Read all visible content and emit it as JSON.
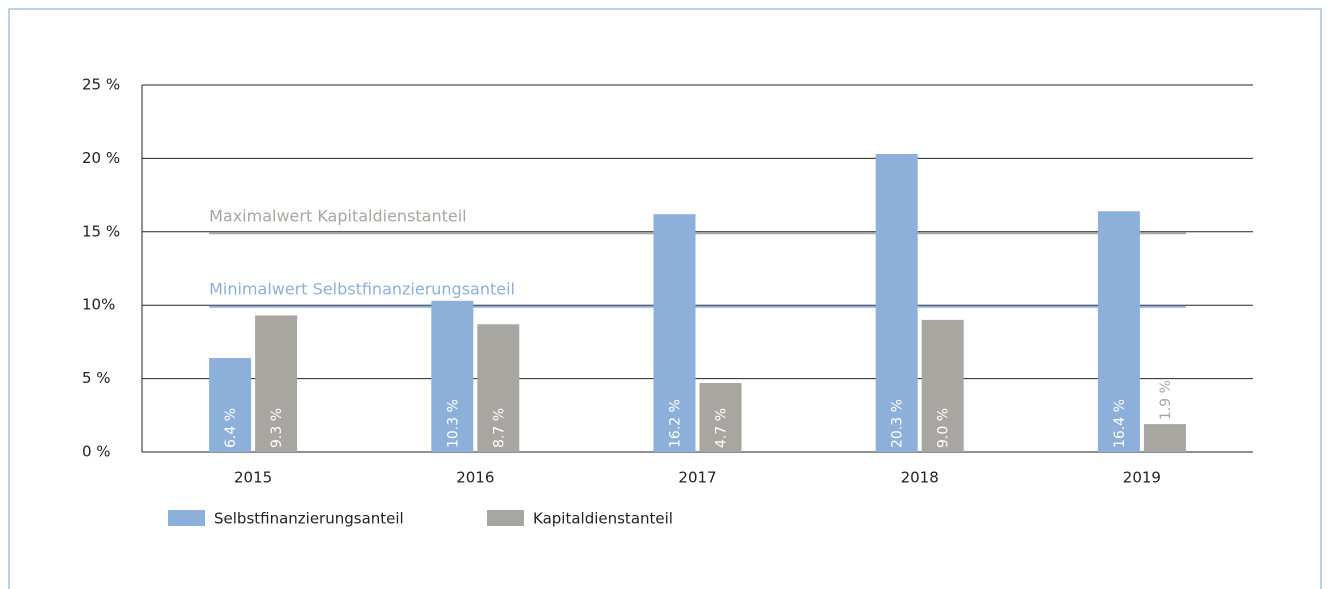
{
  "chart_data": {
    "type": "bar",
    "categories": [
      "2015",
      "2016",
      "2017",
      "2018",
      "2019"
    ],
    "series": [
      {
        "name": "Selbstfinanzierungsanteil",
        "color": "#8db0da",
        "values": [
          6.4,
          10.3,
          16.2,
          20.3,
          16.4
        ],
        "value_labels": [
          "6.4 %",
          "10.3 %",
          "16.2 %",
          "20.3 %",
          "16.4 %"
        ]
      },
      {
        "name": "Kapitaldienstanteil",
        "color": "#a7a6a1",
        "values": [
          9.3,
          8.7,
          4.7,
          9.0,
          1.9
        ],
        "value_labels": [
          "9.3 %",
          "8.7 %",
          "4.7 %",
          "9.0 %",
          "1.9 %"
        ]
      }
    ],
    "ylim": [
      0,
      25
    ],
    "yticks": [
      {
        "value": 0,
        "label": "0 %"
      },
      {
        "value": 5,
        "label": "5 %"
      },
      {
        "value": 10,
        "label": "10%"
      },
      {
        "value": 15,
        "label": "15 %"
      },
      {
        "value": 20,
        "label": "20 %"
      },
      {
        "value": 25,
        "label": "25 %"
      }
    ],
    "grid": true,
    "reference_lines": [
      {
        "label": "Maximalwert Kapitaldienstanteil",
        "value": 15,
        "color": "#a7a6a1"
      },
      {
        "label": "Minimalwert Selbstfinanzierungsanteil",
        "value": 10,
        "color": "#8db0da"
      }
    ],
    "legend": "bottom-left"
  }
}
